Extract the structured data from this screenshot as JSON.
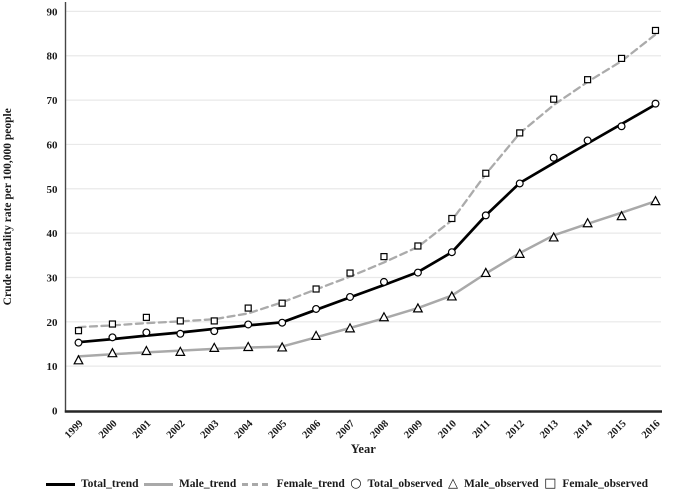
{
  "figure": {
    "title": "",
    "y_axis_label": "Crude mortality rate per 100,000 people",
    "x_axis_label": "Year"
  },
  "legend": {
    "items": [
      {
        "label": "Total_trend",
        "swatch": "line-solid-black"
      },
      {
        "label": "Male_trend",
        "swatch": "line-solid-gray"
      },
      {
        "label": "Female_trend",
        "swatch": "line-dashed-gray"
      },
      {
        "label": "Total_observed",
        "swatch": "marker-circle",
        "glyph": "○"
      },
      {
        "label": "Male_observed",
        "swatch": "marker-triangle",
        "glyph": "△"
      },
      {
        "label": "Female_observed",
        "swatch": "marker-square",
        "glyph": "□"
      }
    ]
  },
  "colors": {
    "trend_total": "#000000",
    "trend_male": "#a9a9a9",
    "trend_female": "#ababab",
    "marker_stroke": "#000000",
    "marker_fill": "#ffffff",
    "grid": "#e9e9e9",
    "axis_left": "#454545",
    "axis_bottom": "#262626",
    "text": "#1a1a1a"
  },
  "chart_data": {
    "type": "line",
    "title": "",
    "xlabel": "Year",
    "ylabel": "Crude mortality rate per 100,000 people",
    "x": [
      1999,
      2000,
      2001,
      2002,
      2003,
      2004,
      2005,
      2006,
      2007,
      2008,
      2009,
      2010,
      2011,
      2012,
      2013,
      2014,
      2015,
      2016
    ],
    "ylim": [
      0,
      92
    ],
    "yticks": [
      0,
      10,
      20,
      30,
      40,
      50,
      60,
      70,
      80,
      90
    ],
    "grid": "horizontal",
    "legend_position": "bottom",
    "series": [
      {
        "name": "Total_trend",
        "kind": "line",
        "style": "solid",
        "color": "#000000",
        "width": 2.7,
        "values": [
          15.4,
          16.1,
          16.9,
          17.6,
          18.4,
          19.2,
          19.9,
          22.7,
          25.5,
          28.3,
          31.2,
          35.7,
          44.0,
          51.3,
          55.8,
          60.2,
          64.6,
          69.0
        ]
      },
      {
        "name": "Male_trend",
        "kind": "line",
        "style": "solid",
        "color": "#a9a9a9",
        "width": 2.5,
        "values": [
          12.2,
          12.7,
          13.1,
          13.5,
          13.9,
          14.2,
          14.4,
          16.5,
          18.6,
          20.8,
          23.1,
          25.9,
          30.9,
          35.5,
          39.5,
          42.1,
          44.6,
          47.2
        ]
      },
      {
        "name": "Female_trend",
        "kind": "line",
        "style": "dashed",
        "color": "#ababab",
        "width": 2.3,
        "values": [
          18.8,
          19.2,
          19.7,
          20.1,
          20.6,
          21.9,
          24.4,
          27.3,
          30.2,
          33.4,
          36.9,
          42.9,
          53.3,
          62.5,
          68.9,
          74.1,
          78.8,
          84.8
        ]
      },
      {
        "name": "Total_observed",
        "kind": "markers",
        "marker": "circle",
        "color": "#000000",
        "values": [
          15.3,
          16.5,
          17.6,
          17.3,
          17.9,
          19.4,
          19.8,
          22.9,
          25.6,
          29.0,
          31.1,
          35.7,
          44.0,
          51.2,
          57.0,
          60.9,
          64.1,
          69.2
        ]
      },
      {
        "name": "Male_observed",
        "kind": "markers",
        "marker": "triangle",
        "color": "#000000",
        "values": [
          11.3,
          12.9,
          13.4,
          13.2,
          14.1,
          14.3,
          14.2,
          16.8,
          18.5,
          21.0,
          23.0,
          25.7,
          31.0,
          35.3,
          39.0,
          42.2,
          43.8,
          47.2
        ]
      },
      {
        "name": "Female_observed",
        "kind": "markers",
        "marker": "square",
        "color": "#000000",
        "values": [
          18.0,
          19.5,
          21.0,
          20.2,
          20.2,
          23.1,
          24.2,
          27.4,
          31.0,
          34.7,
          37.1,
          43.3,
          53.5,
          62.6,
          70.2,
          74.6,
          79.4,
          85.7
        ]
      }
    ]
  }
}
